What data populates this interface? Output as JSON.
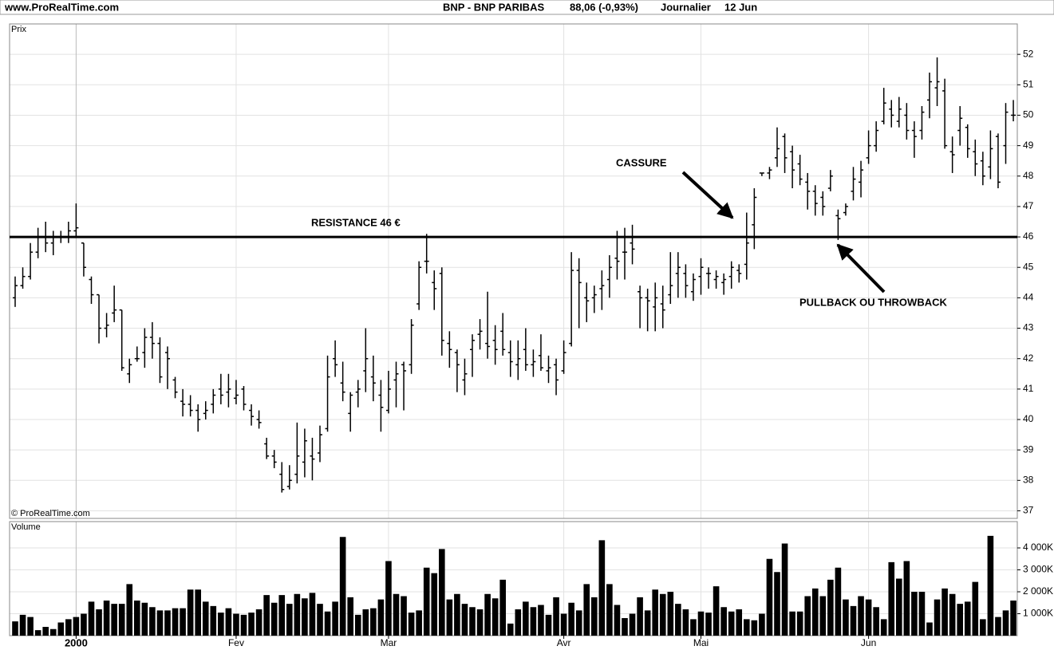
{
  "header": {
    "site": "www.ProRealTime.com",
    "title": "BNP - BNP PARIBAS",
    "quote": "88,06 (-0,93%)",
    "period": "Journalier",
    "date": "12 Jun"
  },
  "chart_data": [
    {
      "type": "ohlc",
      "label": "Prix",
      "copyright": "© ProRealTime.com",
      "color": "#000000",
      "grid": true,
      "ylim": [
        36.75,
        53
      ],
      "yticks": [
        37,
        38,
        39,
        40,
        41,
        42,
        43,
        44,
        45,
        46,
        47,
        48,
        49,
        50,
        51,
        52
      ],
      "resistance": 46,
      "annotations": [
        "RESISTANCE 46 €",
        "CASSURE",
        "PULLBACK OU THROWBACK"
      ],
      "open": [
        44.0,
        44.4,
        44.7,
        45.5,
        46.0,
        45.8,
        46.0,
        46.0,
        46.2,
        45.8,
        44.6,
        44.1,
        43.0,
        43.5,
        43.6,
        41.5,
        42.0,
        42.2,
        42.7,
        42.5,
        42.2,
        41.3,
        40.6,
        40.5,
        40.3,
        40.2,
        40.5,
        41.0,
        40.9,
        40.7,
        41.0,
        40.3,
        40.0,
        39.2,
        38.8,
        38.2,
        37.8,
        38.2,
        38.6,
        38.8,
        38.9,
        39.7,
        42.0,
        41.2,
        40.2,
        40.9,
        41.6,
        41.4,
        40.8,
        40.3,
        41.3,
        41.8,
        41.8,
        43.8,
        45.2,
        44.5,
        44.8,
        42.5,
        42.2,
        41.3,
        42.3,
        42.8,
        42.5,
        42.6,
        42.9,
        42.2,
        41.8,
        42.3,
        41.8,
        42.1,
        41.6,
        41.8,
        41.6,
        42.5,
        44.9,
        44.0,
        44.0,
        44.3,
        44.6,
        45.3,
        45.5,
        45.8,
        44.2,
        44.0,
        43.7,
        43.8,
        44.1,
        44.8,
        44.8,
        44.2,
        44.7,
        44.8,
        44.6,
        44.5,
        44.7,
        44.9,
        45.1,
        46.4,
        48.1,
        48.1,
        48.6,
        49.3,
        48.8,
        48.4,
        47.8,
        47.5,
        47.3,
        47.6,
        46.7,
        46.8,
        47.5,
        47.8,
        48.6,
        49.0,
        49.8,
        50.2,
        49.8,
        50.0,
        49.5,
        49.5,
        50.5,
        50.9,
        50.8,
        48.8,
        49.5,
        49.6,
        48.8,
        48.5,
        48.3,
        49.3,
        49.0,
        50.0
      ],
      "high": [
        44.7,
        45.0,
        45.8,
        46.3,
        46.5,
        46.2,
        46.2,
        46.5,
        47.1,
        45.8,
        44.7,
        44.1,
        43.5,
        44.4,
        43.6,
        42.0,
        42.4,
        43.0,
        43.2,
        42.7,
        42.4,
        41.4,
        41.0,
        40.8,
        40.5,
        40.6,
        41.0,
        41.5,
        41.5,
        41.3,
        41.1,
        40.5,
        40.3,
        39.4,
        39.0,
        38.6,
        38.5,
        39.9,
        39.7,
        39.4,
        39.8,
        42.1,
        42.6,
        41.9,
        40.9,
        41.3,
        43.0,
        42.1,
        41.3,
        41.6,
        41.9,
        41.9,
        43.3,
        45.2,
        46.1,
        44.9,
        45.0,
        42.9,
        42.3,
        42.0,
        42.8,
        43.3,
        44.2,
        43.1,
        43.5,
        42.6,
        42.6,
        43.0,
        42.3,
        42.8,
        42.1,
        42.0,
        42.6,
        45.5,
        45.3,
        44.5,
        44.4,
        44.9,
        45.4,
        46.2,
        46.3,
        46.4,
        44.4,
        44.3,
        44.5,
        44.4,
        45.5,
        45.5,
        45.1,
        44.8,
        45.3,
        45.0,
        44.9,
        44.8,
        45.2,
        45.1,
        46.8,
        47.6,
        48.1,
        48.3,
        49.6,
        49.4,
        49.0,
        48.7,
        48.1,
        47.7,
        47.5,
        48.2,
        46.9,
        47.1,
        48.3,
        48.5,
        49.5,
        49.8,
        50.9,
        50.5,
        50.6,
        50.4,
        49.8,
        50.3,
        51.4,
        51.9,
        51.2,
        49.3,
        50.3,
        49.7,
        49.2,
        48.8,
        49.5,
        49.4,
        50.4,
        50.5
      ],
      "low": [
        43.7,
        44.3,
        44.6,
        45.3,
        45.5,
        45.4,
        45.8,
        45.8,
        46.0,
        44.7,
        43.8,
        42.5,
        42.7,
        43.2,
        41.6,
        41.2,
        41.9,
        41.7,
        42.0,
        41.2,
        41.0,
        40.7,
        40.1,
        40.1,
        39.6,
        40.0,
        40.2,
        40.5,
        40.4,
        40.5,
        40.3,
        39.8,
        39.7,
        38.7,
        38.4,
        37.6,
        37.7,
        37.9,
        38.1,
        38.0,
        38.6,
        39.6,
        41.4,
        40.6,
        39.6,
        40.4,
        40.9,
        40.6,
        39.6,
        40.2,
        40.4,
        40.3,
        41.5,
        43.6,
        44.8,
        43.6,
        42.1,
        41.7,
        40.9,
        40.8,
        41.4,
        42.3,
        42.0,
        41.8,
        42.1,
        41.4,
        41.3,
        41.6,
        41.4,
        41.6,
        41.2,
        40.8,
        41.5,
        42.4,
        43.0,
        43.2,
        43.5,
        43.6,
        44.0,
        44.6,
        44.6,
        45.1,
        43.0,
        42.9,
        42.9,
        43.0,
        43.8,
        44.0,
        44.0,
        43.9,
        44.1,
        44.3,
        44.3,
        44.1,
        44.3,
        44.5,
        44.6,
        45.6,
        48.0,
        47.9,
        48.3,
        48.1,
        47.6,
        47.7,
        46.9,
        46.7,
        46.7,
        47.5,
        45.9,
        46.7,
        47.2,
        47.3,
        48.4,
        48.8,
        49.7,
        49.6,
        49.6,
        49.2,
        48.6,
        49.2,
        49.9,
        50.3,
        48.9,
        48.1,
        49.0,
        48.6,
        48.0,
        47.7,
        47.9,
        47.6,
        48.4,
        49.8
      ],
      "close": [
        44.4,
        44.7,
        45.5,
        46.0,
        45.8,
        46.0,
        46.0,
        46.2,
        46.3,
        45.0,
        44.1,
        43.0,
        43.1,
        43.6,
        41.7,
        41.8,
        42.0,
        42.7,
        42.5,
        41.4,
        42.0,
        40.9,
        40.5,
        40.3,
        40.0,
        40.3,
        40.8,
        40.8,
        41.0,
        40.8,
        40.5,
        40.1,
        39.9,
        38.8,
        38.6,
        37.7,
        38.0,
        38.8,
        39.3,
        38.7,
        39.5,
        41.4,
        41.8,
        40.9,
        40.8,
        41.0,
        42.0,
        41.2,
        40.4,
        41.0,
        41.5,
        41.6,
        43.1,
        45.0,
        45.2,
        44.3,
        42.6,
        42.3,
        41.8,
        41.5,
        42.6,
        42.9,
        42.4,
        42.3,
        42.3,
        41.9,
        42.0,
        41.8,
        41.9,
        41.7,
        41.7,
        41.3,
        42.2,
        44.9,
        44.5,
        43.9,
        44.1,
        44.4,
        45.0,
        45.2,
        45.5,
        45.6,
        44.0,
        43.9,
        44.0,
        43.6,
        44.4,
        45.0,
        44.4,
        44.6,
        45.0,
        44.8,
        44.7,
        44.6,
        45.0,
        44.8,
        45.8,
        47.3,
        48.1,
        48.2,
        48.9,
        48.6,
        48.2,
        47.9,
        47.5,
        47.1,
        47.0,
        48.0,
        46.6,
        47.0,
        47.9,
        48.2,
        49.0,
        49.5,
        50.4,
        50.0,
        50.2,
        49.5,
        49.3,
        50.1,
        51.1,
        51.1,
        49.0,
        48.7,
        49.9,
        48.9,
        48.4,
        48.0,
        48.9,
        47.8,
        50.1,
        50.0
      ]
    },
    {
      "type": "bar",
      "label": "Volume",
      "color": "#000000",
      "categories": [
        null,
        null,
        null,
        null,
        null,
        null,
        null,
        null,
        "2000",
        null,
        null,
        null,
        null,
        null,
        null,
        null,
        null,
        null,
        null,
        null,
        null,
        null,
        null,
        null,
        null,
        null,
        null,
        null,
        null,
        "Fev",
        null,
        null,
        null,
        null,
        null,
        null,
        null,
        null,
        null,
        null,
        null,
        null,
        null,
        null,
        null,
        null,
        null,
        null,
        null,
        "Mar",
        null,
        null,
        null,
        null,
        null,
        null,
        null,
        null,
        null,
        null,
        null,
        null,
        null,
        null,
        null,
        null,
        null,
        null,
        null,
        null,
        null,
        null,
        "Avr",
        null,
        null,
        null,
        null,
        null,
        null,
        null,
        null,
        null,
        null,
        null,
        null,
        null,
        null,
        null,
        null,
        null,
        "Mai",
        null,
        null,
        null,
        null,
        null,
        null,
        null,
        null,
        null,
        null,
        null,
        null,
        null,
        null,
        null,
        null,
        null,
        null,
        null,
        null,
        null,
        "Jun",
        null,
        null,
        null,
        null,
        null,
        null,
        null,
        null,
        null,
        null,
        null,
        null,
        null,
        null,
        null,
        null,
        null,
        null,
        null
      ],
      "ylim": [
        0,
        5200
      ],
      "yticks": [
        {
          "value": 1000,
          "label": "1 000K"
        },
        {
          "value": 2000,
          "label": "2 000K"
        },
        {
          "value": 3000,
          "label": "3 000K"
        },
        {
          "value": 4000,
          "label": "4 000K"
        }
      ],
      "values": [
        650,
        950,
        850,
        250,
        400,
        300,
        600,
        750,
        850,
        1000,
        1550,
        1200,
        1600,
        1450,
        1450,
        2350,
        1600,
        1500,
        1300,
        1150,
        1150,
        1250,
        1250,
        2100,
        2100,
        1550,
        1350,
        1050,
        1250,
        1000,
        950,
        1050,
        1200,
        1850,
        1500,
        1850,
        1450,
        1900,
        1700,
        1950,
        1450,
        1100,
        1550,
        4500,
        1750,
        950,
        1200,
        1250,
        1650,
        3400,
        1900,
        1800,
        1050,
        1150,
        3100,
        2850,
        3950,
        1650,
        1900,
        1450,
        1300,
        1200,
        1900,
        1700,
        2550,
        550,
        1200,
        1550,
        1300,
        1400,
        950,
        1750,
        1000,
        1500,
        1150,
        2350,
        1750,
        4350,
        2350,
        1400,
        800,
        1000,
        1750,
        1150,
        2100,
        1900,
        2000,
        1450,
        1200,
        750,
        1100,
        1050,
        2250,
        1300,
        1100,
        1200,
        750,
        700,
        1000,
        3500,
        2900,
        4200,
        1100,
        1100,
        1800,
        2150,
        1800,
        2550,
        3100,
        1650,
        1350,
        1800,
        1650,
        1300,
        750,
        3350,
        2600,
        3400,
        2000,
        2000,
        600,
        1650,
        2150,
        1900,
        1450,
        1550,
        2450,
        750,
        4550,
        850,
        1150,
        1600
      ]
    }
  ]
}
